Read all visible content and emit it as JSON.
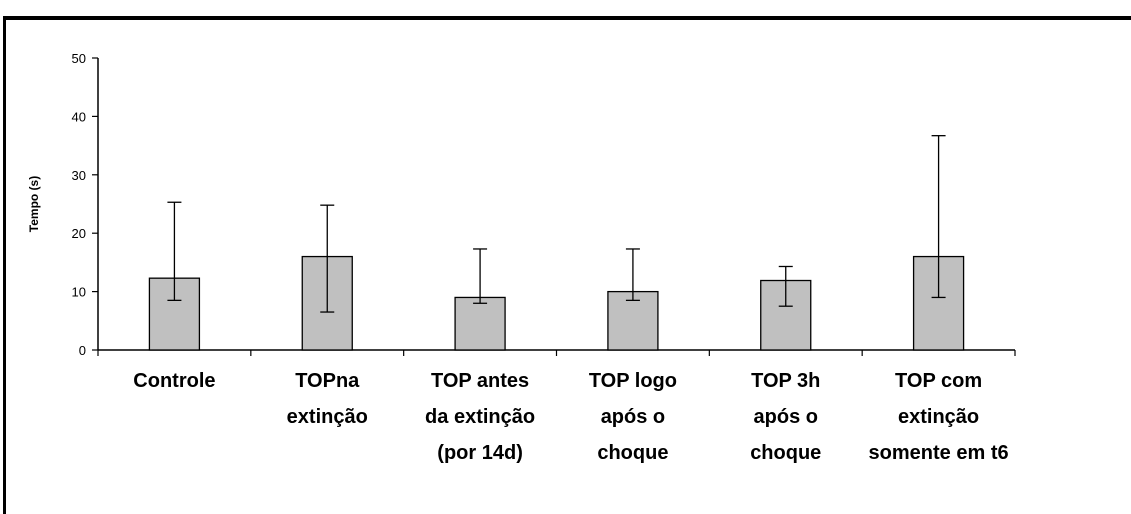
{
  "chart_data": {
    "type": "bar",
    "title": "",
    "xlabel": "",
    "ylabel": "Tempo (s)",
    "ylim": [
      0,
      50
    ],
    "yticks": [
      0,
      10,
      20,
      30,
      40,
      50
    ],
    "grid": false,
    "categories": [
      [
        "Controle"
      ],
      [
        "TOPna",
        "extinção"
      ],
      [
        "TOP antes",
        "da extinção",
        "(por 14d)"
      ],
      [
        "TOP logo",
        "após o",
        "choque"
      ],
      [
        "TOP 3h",
        "após o",
        "choque"
      ],
      [
        "TOP com",
        "extinção",
        "somente em t6"
      ]
    ],
    "values": [
      12.3,
      16,
      9,
      10,
      11.9,
      16
    ],
    "error_upper": [
      25.3,
      24.8,
      17.3,
      17.3,
      14.3,
      36.7
    ],
    "error_lower": [
      8.5,
      6.5,
      8,
      8.5,
      7.5,
      9
    ],
    "bar_color": "#c0c0c0",
    "bar_stroke": "#000000"
  }
}
